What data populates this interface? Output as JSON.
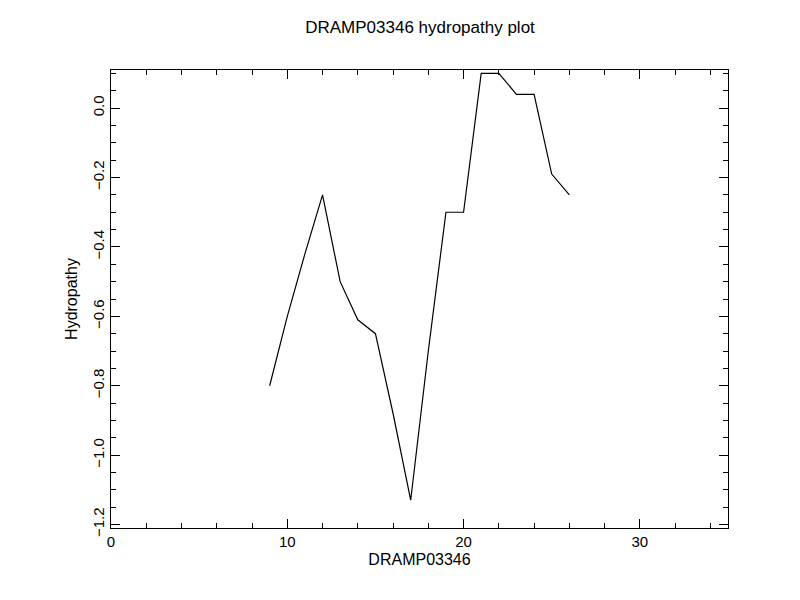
{
  "chart_data": {
    "type": "line",
    "title": "DRAMP03346 hydropathy plot",
    "x_label": "DRAMP03346",
    "y_label": "Hydropathy",
    "x": [
      9,
      10,
      11,
      12,
      13,
      14,
      15,
      16,
      17,
      18,
      19,
      20,
      21,
      22,
      23,
      24,
      25,
      26
    ],
    "values": [
      -0.8,
      -0.6,
      -0.42,
      -0.25,
      -0.5,
      -0.61,
      -0.65,
      -0.88,
      -1.13,
      -0.7,
      -0.3,
      -0.3,
      0.1,
      0.1,
      0.04,
      0.04,
      -0.19,
      -0.25
    ],
    "color": "#000000",
    "xlim": [
      0,
      35
    ],
    "xticks": [
      0,
      10,
      20,
      30
    ],
    "ylim": [
      -1.21,
      0.11
    ],
    "yticks": [
      {
        "value": -1.2,
        "label": "−1.2"
      },
      {
        "value": -1.0,
        "label": "−1.0"
      },
      {
        "value": -0.8,
        "label": "−0.8"
      },
      {
        "value": -0.6,
        "label": "−0.6"
      },
      {
        "value": -0.4,
        "label": "−0.4"
      },
      {
        "value": -0.2,
        "label": "−0.2"
      },
      {
        "value": 0.0,
        "label": "0.0"
      }
    ],
    "grid": false
  }
}
